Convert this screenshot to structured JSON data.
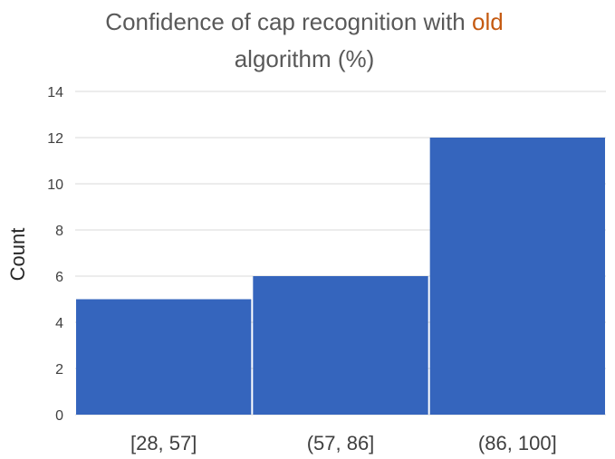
{
  "chart_data": {
    "type": "bar",
    "title": {
      "line1_prefix": "Confidence of cap recognition with ",
      "line1_highlight": "old",
      "line2": "algorithm (%)"
    },
    "xlabel": "",
    "ylabel": "Count",
    "categories": [
      "[28, 57]",
      "(57, 86]",
      "(86, 100]"
    ],
    "values": [
      5,
      6,
      12
    ],
    "ylim": [
      0,
      14
    ],
    "yticks": [
      0,
      2,
      4,
      6,
      8,
      10,
      12,
      14
    ],
    "grid": true,
    "legend": "none",
    "colors": {
      "bar": "#3565BD",
      "title": "#595959",
      "highlight": "#C55A11",
      "grid": "#D9D9D9",
      "tick_text": "#404040"
    }
  }
}
